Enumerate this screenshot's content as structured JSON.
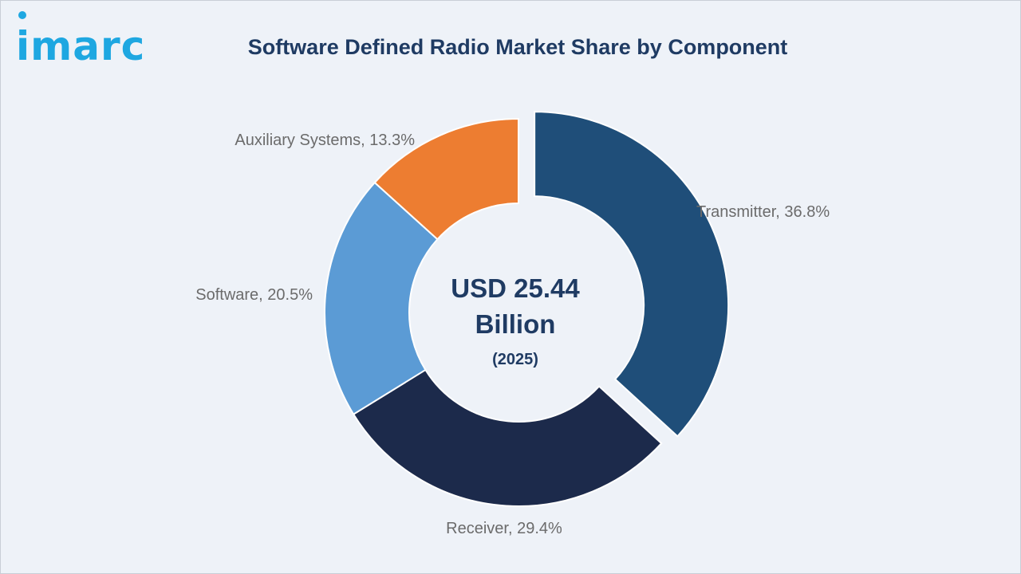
{
  "logo": {
    "text": "imarc"
  },
  "title": "Software Defined Radio Market Share by Component",
  "center": {
    "line1": "USD 25.44",
    "line2": "Billion",
    "line3": "(2025)"
  },
  "colors": {
    "Transmitter": "#1f4e79",
    "Receiver": "#1c2a4b",
    "Software": "#5b9bd5",
    "Auxiliary Systems": "#ed7d31",
    "label": "#6b6b6b",
    "center": "#1f3b63"
  },
  "chart_data": {
    "type": "pie",
    "title": "Software Defined Radio Market Share by Component",
    "categories": [
      "Transmitter",
      "Receiver",
      "Software",
      "Auxiliary Systems"
    ],
    "values": [
      36.8,
      29.4,
      20.5,
      13.3
    ],
    "unit": "%",
    "labels": [
      "Transmitter, 36.8%",
      "Receiver, 29.4%",
      "Software, 20.5%",
      "Auxiliary Systems, 13.3%"
    ],
    "style": "donut, transmitter slice exploded",
    "legend": "none"
  }
}
